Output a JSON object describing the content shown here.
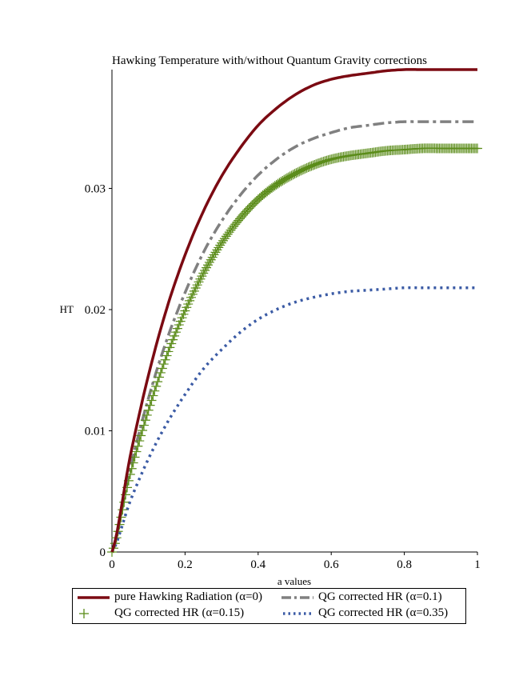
{
  "chart_data": {
    "type": "line",
    "title": "Hawking Temperature with/without Quantum Gravity corrections",
    "xlabel": "a values",
    "ylabel": "HT",
    "xlim": [
      0,
      1
    ],
    "ylim": [
      0,
      0.0398
    ],
    "xticks": [
      "0",
      "0.2",
      "0.4",
      "0.6",
      "0.8",
      "1"
    ],
    "yticks": [
      "0",
      "0.01",
      "0.02",
      "0.03"
    ],
    "grid": false,
    "legend_position": "bottom",
    "x": [
      0,
      0.05,
      0.1,
      0.15,
      0.2,
      0.25,
      0.3,
      0.35,
      0.4,
      0.45,
      0.5,
      0.55,
      0.6,
      0.65,
      0.7,
      0.75,
      0.8,
      0.85,
      0.9,
      0.95,
      1.0
    ],
    "series": [
      {
        "name": "pure Hawking Radiation  (α=0)",
        "color": "#7b0a12",
        "style": "solid",
        "values": [
          0,
          0.0079,
          0.0146,
          0.0201,
          0.0245,
          0.0281,
          0.031,
          0.0333,
          0.0352,
          0.0366,
          0.0377,
          0.0385,
          0.039,
          0.0393,
          0.0395,
          0.0397,
          0.0398,
          0.0398,
          0.0398,
          0.0398,
          0.0398
        ]
      },
      {
        "name": "QG corrected HR (α=0.1)",
        "color": "#808080",
        "style": "dashdot",
        "values": [
          0,
          0.0069,
          0.0127,
          0.0175,
          0.0214,
          0.0247,
          0.0273,
          0.0294,
          0.0311,
          0.0324,
          0.0334,
          0.0341,
          0.0346,
          0.035,
          0.0352,
          0.0354,
          0.0355,
          0.0355,
          0.0355,
          0.0355,
          0.0355
        ]
      },
      {
        "name": "QG corrected HR (α=0.15)",
        "color": "#5b8c1a",
        "style": "plus",
        "values": [
          0,
          0.0064,
          0.0117,
          0.0162,
          0.0199,
          0.023,
          0.0255,
          0.0275,
          0.0291,
          0.0303,
          0.0312,
          0.0319,
          0.0324,
          0.0327,
          0.0329,
          0.0331,
          0.0332,
          0.0333,
          0.0333,
          0.0333,
          0.0333
        ]
      },
      {
        "name": "QG corrected HR (α=0.35)",
        "color": "#3b5ba5",
        "style": "dotted",
        "values": [
          0,
          0.0042,
          0.0077,
          0.0106,
          0.013,
          0.0151,
          0.0167,
          0.0181,
          0.0192,
          0.02,
          0.0206,
          0.021,
          0.0213,
          0.0215,
          0.0216,
          0.0217,
          0.0218,
          0.0218,
          0.0218,
          0.0218,
          0.0218
        ]
      }
    ]
  }
}
